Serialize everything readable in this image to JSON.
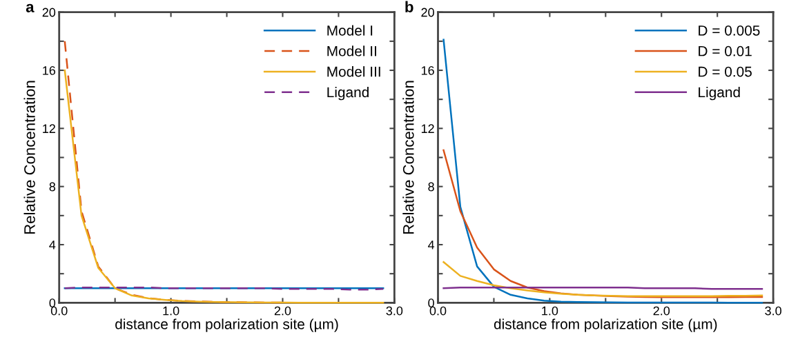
{
  "chart_data": [
    {
      "type": "line",
      "title": "a",
      "xlabel": "distance from polarization site (µm)",
      "ylabel": "Relative Concentration",
      "x": [
        0.05,
        0.2,
        0.35,
        0.5,
        0.65,
        0.8,
        0.95,
        1.1,
        1.25,
        1.4,
        1.55,
        1.7,
        1.85,
        2.0,
        2.15,
        2.3,
        2.45,
        2.6,
        2.75,
        2.9
      ],
      "series": [
        {
          "name": "Model I",
          "color": "#0072bd",
          "line_style": "solid",
          "values": [
            1.0,
            1.0,
            1.0,
            1.0,
            1.0,
            1.0,
            1.0,
            1.0,
            1.0,
            1.0,
            1.0,
            1.0,
            1.0,
            1.0,
            1.0,
            1.0,
            1.0,
            1.0,
            1.0,
            1.0
          ]
        },
        {
          "name": "Model II",
          "color": "#d95319",
          "line_style": "dashed",
          "values": [
            18,
            6.3,
            2.5,
            1.0,
            0.55,
            0.32,
            0.2,
            0.13,
            0.09,
            0.06,
            0.04,
            0.03,
            0.02,
            0.02,
            null,
            null,
            null,
            null,
            null,
            null
          ]
        },
        {
          "name": "Model III",
          "color": "#edb120",
          "line_style": "solid",
          "values": [
            16,
            6.0,
            2.4,
            1.0,
            0.5,
            0.3,
            0.2,
            0.12,
            0.08,
            0.05,
            0.04,
            0.03,
            0.02,
            0.02,
            0.01,
            0.01,
            0.01,
            0.01,
            0.01,
            0.01
          ]
        },
        {
          "name": "Ligand",
          "color": "#7e2f8e",
          "line_style": "dashed",
          "values": [
            1.0,
            1.05,
            1.05,
            1.05,
            1.05,
            1.05,
            1.0,
            1.0,
            1.0,
            1.0,
            1.0,
            1.0,
            1.0,
            0.95,
            0.95,
            0.95,
            0.95,
            0.9,
            0.9,
            0.95
          ]
        }
      ],
      "xlim": [
        0,
        3
      ],
      "ylim": [
        0,
        20
      ],
      "xticks": [
        {
          "value": 0,
          "label": "0.0"
        },
        {
          "value": 0.5,
          "label": null
        },
        {
          "value": 1,
          "label": "1.0"
        },
        {
          "value": 1.5,
          "label": null
        },
        {
          "value": 2,
          "label": "2.0"
        },
        {
          "value": 2.5,
          "label": null
        },
        {
          "value": 3,
          "label": "3.0"
        }
      ],
      "yticks": [
        0,
        {
          "value": 2,
          "label": null
        },
        4,
        {
          "value": 6,
          "label": null
        },
        8,
        {
          "value": 10,
          "label": null
        },
        12,
        {
          "value": 14,
          "label": null
        },
        16,
        {
          "value": 18,
          "label": null
        },
        20
      ],
      "legend": "top right",
      "grid": false,
      "marker": "none"
    },
    {
      "type": "line",
      "title": "b",
      "xlabel": "distance from polarization site (µm)",
      "ylabel": "Relative Concentration",
      "x": [
        0.05,
        0.2,
        0.35,
        0.5,
        0.65,
        0.8,
        0.95,
        1.1,
        1.25,
        1.4,
        1.55,
        1.7,
        1.85,
        2.0,
        2.15,
        2.3,
        2.45,
        2.6,
        2.75,
        2.9
      ],
      "series": [
        {
          "name": "D = 0.005",
          "color": "#0072bd",
          "line_style": "solid",
          "values": [
            18.1,
            6.6,
            2.5,
            1.1,
            0.55,
            0.3,
            0.15,
            0.08,
            0.05,
            0.04,
            0.03,
            0.02,
            0.02,
            0.02,
            0.02,
            0.02,
            0.02,
            0.01,
            0.01,
            0.0
          ]
        },
        {
          "name": "D = 0.01",
          "color": "#d95319",
          "line_style": "solid",
          "values": [
            10.5,
            6.3,
            3.8,
            2.3,
            1.5,
            1.05,
            0.8,
            0.65,
            0.55,
            0.5,
            0.45,
            0.42,
            0.4,
            0.38,
            0.38,
            0.38,
            0.38,
            0.38,
            0.4,
            0.4
          ]
        },
        {
          "name": "D = 0.05",
          "color": "#edb120",
          "line_style": "solid",
          "values": [
            2.8,
            1.85,
            1.5,
            1.2,
            1.0,
            0.85,
            0.72,
            0.62,
            0.55,
            0.5,
            0.48,
            0.45,
            0.45,
            0.45,
            0.45,
            0.45,
            0.45,
            0.48,
            0.48,
            0.5
          ]
        },
        {
          "name": "Ligand",
          "color": "#7e2f8e",
          "line_style": "solid",
          "values": [
            1.0,
            1.05,
            1.05,
            1.05,
            1.05,
            1.05,
            1.05,
            1.05,
            1.05,
            1.05,
            1.05,
            1.05,
            1.0,
            1.0,
            1.0,
            1.0,
            0.95,
            0.95,
            0.95,
            0.95
          ]
        }
      ],
      "xlim": [
        0,
        3
      ],
      "ylim": [
        0,
        20
      ],
      "xticks": [
        {
          "value": 0,
          "label": "0.0"
        },
        {
          "value": 0.5,
          "label": null
        },
        {
          "value": 1,
          "label": "1.0"
        },
        {
          "value": 1.5,
          "label": null
        },
        {
          "value": 2,
          "label": "2.0"
        },
        {
          "value": 2.5,
          "label": null
        },
        {
          "value": 3,
          "label": "3.0"
        }
      ],
      "yticks": [
        0,
        {
          "value": 2,
          "label": null
        },
        4,
        {
          "value": 6,
          "label": null
        },
        8,
        {
          "value": 10,
          "label": null
        },
        12,
        {
          "value": 14,
          "label": null
        },
        16,
        {
          "value": 18,
          "label": null
        },
        20
      ],
      "legend": "top right",
      "grid": false,
      "marker": "none"
    }
  ]
}
